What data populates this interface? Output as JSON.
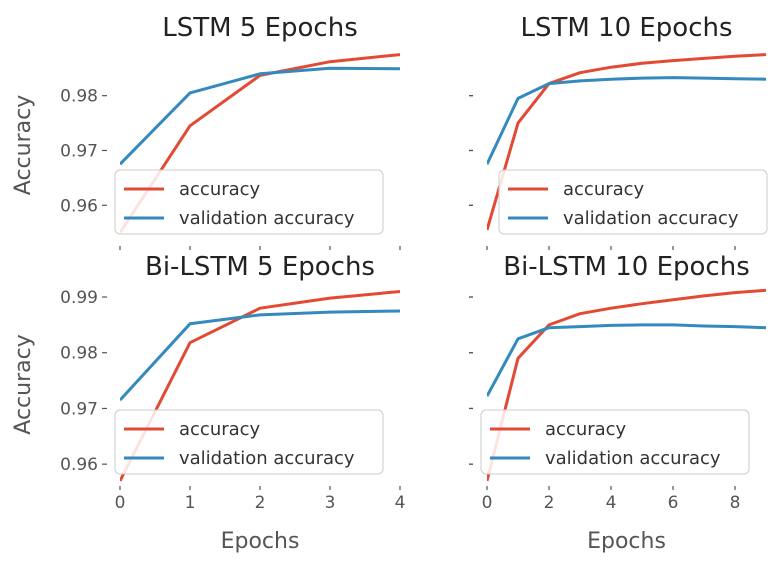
{
  "colors": {
    "accuracy": "#E24A33",
    "validation": "#348ABD",
    "tick": "#555555",
    "legend_border": "#CCCCCC"
  },
  "legend_labels": [
    "accuracy",
    "validation accuracy"
  ],
  "shared_labels": {
    "ylabel": "Accuracy",
    "xlabel": "Epochs"
  },
  "chart_data": [
    {
      "type": "line",
      "title": "LSTM 5 Epochs",
      "ylabel": "Accuracy",
      "xlabel": "",
      "xlim": [
        0,
        4
      ],
      "ylim": [
        0.9533,
        0.9887
      ],
      "xticks": [],
      "yticks": [
        0.96,
        0.97,
        0.98
      ],
      "legend": "lower-left",
      "series": [
        {
          "name": "accuracy",
          "x": [
            0,
            1,
            2,
            3,
            4
          ],
          "values": [
            0.955,
            0.9745,
            0.9837,
            0.9862,
            0.9875
          ]
        },
        {
          "name": "validation accuracy",
          "x": [
            0,
            1,
            2,
            3,
            4
          ],
          "values": [
            0.9675,
            0.9805,
            0.984,
            0.985,
            0.9849
          ]
        }
      ]
    },
    {
      "type": "line",
      "title": "LSTM 10 Epochs",
      "ylabel": "",
      "xlabel": "",
      "xlim": [
        0,
        9
      ],
      "ylim": [
        0.9533,
        0.9887
      ],
      "xticks": [],
      "yticks": [
        0.96,
        0.97,
        0.98
      ],
      "legend": "lower-right",
      "series": [
        {
          "name": "accuracy",
          "x": [
            0,
            1,
            2,
            3,
            4,
            5,
            6,
            7,
            8,
            9
          ],
          "values": [
            0.9555,
            0.975,
            0.9822,
            0.9842,
            0.9852,
            0.9859,
            0.9864,
            0.9868,
            0.9872,
            0.9875
          ]
        },
        {
          "name": "validation accuracy",
          "x": [
            0,
            1,
            2,
            3,
            4,
            5,
            6,
            7,
            8,
            9
          ],
          "values": [
            0.9675,
            0.9795,
            0.9822,
            0.9827,
            0.983,
            0.9832,
            0.9833,
            0.9832,
            0.9831,
            0.983
          ]
        }
      ]
    },
    {
      "type": "line",
      "title": "Bi-LSTM 5 Epochs",
      "ylabel": "Accuracy",
      "xlabel": "Epochs",
      "xlim": [
        0,
        4
      ],
      "ylim": [
        0.9568,
        0.9918
      ],
      "xticks": [
        0,
        1,
        2,
        3,
        4
      ],
      "yticks": [
        0.96,
        0.97,
        0.98,
        0.99
      ],
      "legend": "lower-left",
      "series": [
        {
          "name": "accuracy",
          "x": [
            0,
            1,
            2,
            3,
            4
          ],
          "values": [
            0.957,
            0.9818,
            0.988,
            0.9898,
            0.991
          ]
        },
        {
          "name": "validation accuracy",
          "x": [
            0,
            1,
            2,
            3,
            4
          ],
          "values": [
            0.9715,
            0.9852,
            0.9868,
            0.9873,
            0.9875
          ]
        }
      ]
    },
    {
      "type": "line",
      "title": "Bi-LSTM 10 Epochs",
      "ylabel": "",
      "xlabel": "Epochs",
      "xlim": [
        0,
        9
      ],
      "ylim": [
        0.9568,
        0.9918
      ],
      "xticks": [
        0,
        2,
        4,
        6,
        8
      ],
      "yticks": [
        0.96,
        0.97,
        0.98,
        0.99
      ],
      "legend": "lower-left",
      "series": [
        {
          "name": "accuracy",
          "x": [
            0,
            1,
            2,
            3,
            4,
            5,
            6,
            7,
            8,
            9
          ],
          "values": [
            0.957,
            0.979,
            0.985,
            0.987,
            0.988,
            0.9888,
            0.9895,
            0.9902,
            0.9908,
            0.9912
          ]
        },
        {
          "name": "validation accuracy",
          "x": [
            0,
            1,
            2,
            3,
            4,
            5,
            6,
            7,
            8,
            9
          ],
          "values": [
            0.9722,
            0.9825,
            0.9845,
            0.9847,
            0.9849,
            0.985,
            0.985,
            0.9848,
            0.9847,
            0.9845
          ]
        }
      ]
    }
  ]
}
